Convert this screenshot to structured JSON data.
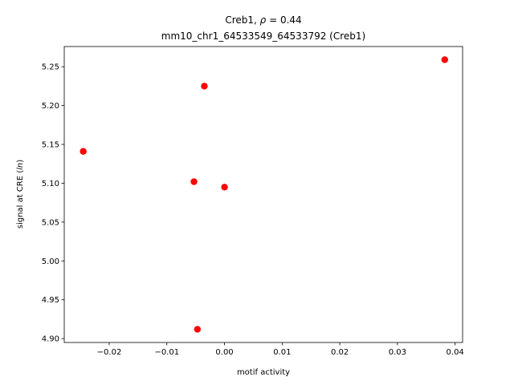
{
  "chart_data": {
    "type": "scatter",
    "title_line1_prefix": "Creb1, ",
    "title_line1_symbol": "ρ",
    "title_line1_suffix": " = 0.44",
    "title_line2": "mm10_chr1_64533549_64533792 (Creb1)",
    "xlabel": "motif activity",
    "ylabel_prefix": "signal at CRE (",
    "ylabel_italic": "ln",
    "ylabel_suffix": ")",
    "xlim": [
      -0.0278,
      0.0413
    ],
    "ylim": [
      4.895,
      5.276
    ],
    "xticks": [
      -0.02,
      -0.01,
      0.0,
      0.01,
      0.02,
      0.03,
      0.04
    ],
    "xtick_labels": [
      "−0.02",
      "−0.01",
      "0.00",
      "0.01",
      "0.02",
      "0.03",
      "0.04"
    ],
    "yticks": [
      4.9,
      4.95,
      5.0,
      5.05,
      5.1,
      5.15,
      5.2,
      5.25
    ],
    "ytick_labels": [
      "4.90",
      "4.95",
      "5.00",
      "5.05",
      "5.10",
      "5.15",
      "5.20",
      "5.25"
    ],
    "grid": false,
    "marker_color": "#ff0000",
    "points": [
      {
        "x": -0.0245,
        "y": 5.141
      },
      {
        "x": -0.0035,
        "y": 5.225
      },
      {
        "x": 0.0382,
        "y": 5.259
      },
      {
        "x": -0.0053,
        "y": 5.102
      },
      {
        "x": 0.0,
        "y": 5.095
      },
      {
        "x": -0.0047,
        "y": 4.912
      }
    ]
  }
}
